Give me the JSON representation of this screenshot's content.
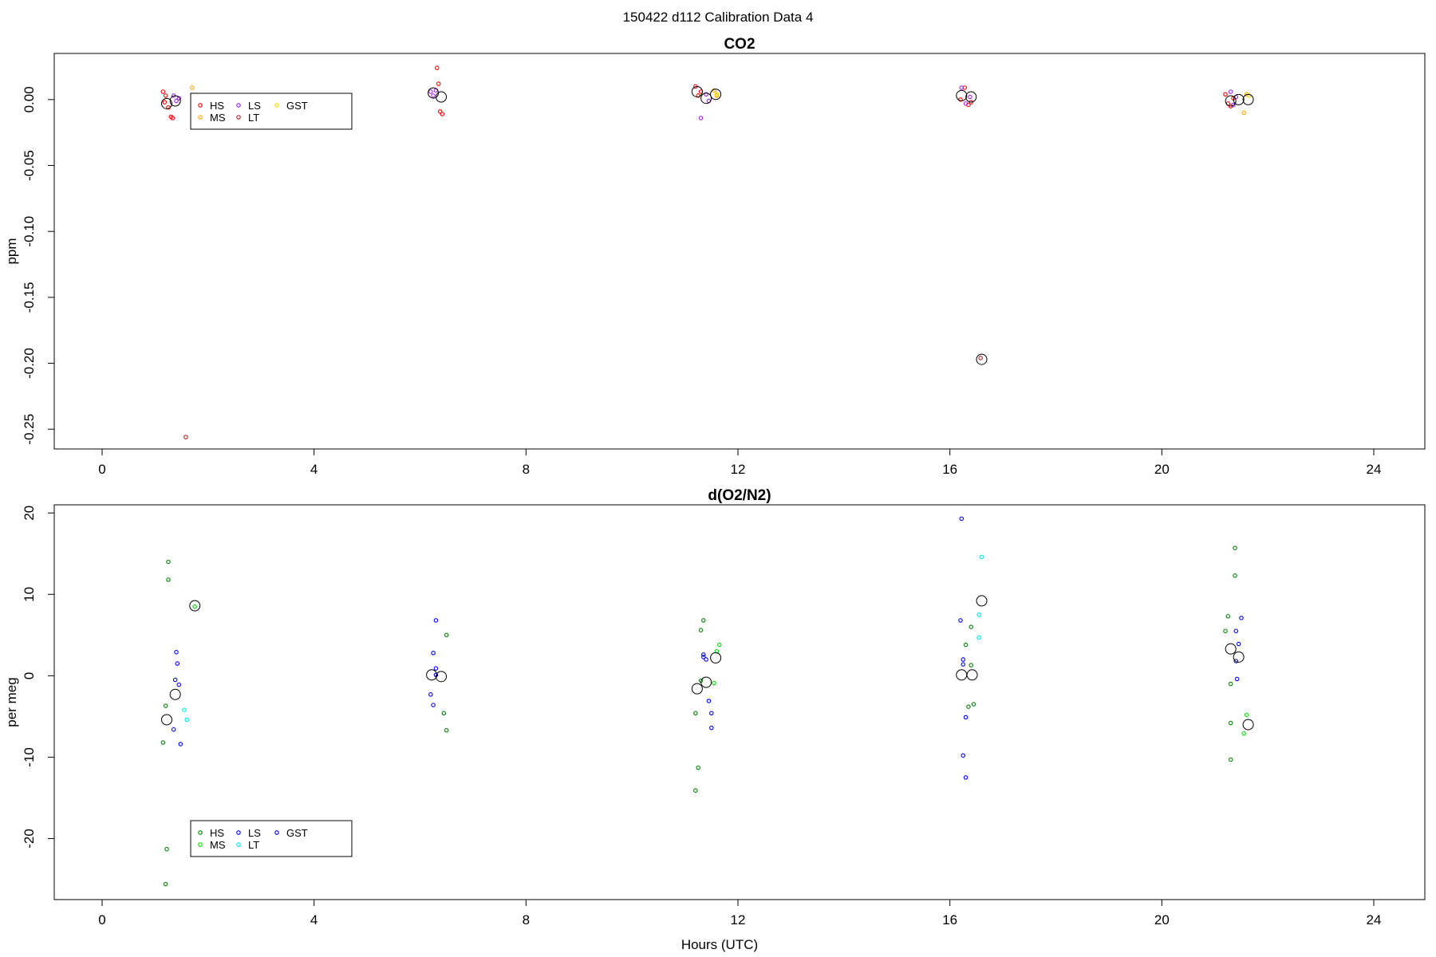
{
  "figure": {
    "title": "150422   d112   Calibration Data 4",
    "xlabel": "Hours (UTC)"
  },
  "chart_data": [
    {
      "type": "scatter",
      "title": "CO2",
      "xlabel": "",
      "ylabel": "ppm",
      "xlim": [
        0,
        24
      ],
      "ylim": [
        -0.265,
        0.035
      ],
      "xticks": [
        0,
        4,
        8,
        12,
        16,
        20,
        24
      ],
      "yticks": [
        0.0,
        -0.05,
        -0.1,
        -0.15,
        -0.2,
        -0.25
      ],
      "ytick_labels": [
        "0.00",
        "-0.05",
        "-0.10",
        "-0.15",
        "-0.20",
        "-0.25"
      ],
      "legend": {
        "position": "top-left",
        "entries": [
          {
            "name": "HS",
            "color": "#ff0000"
          },
          {
            "name": "MS",
            "color": "#ffa500"
          },
          {
            "name": "LS",
            "color": "#a020f0"
          },
          {
            "name": "LT",
            "color": "#b22222"
          },
          {
            "name": "GST",
            "color": "#ffd700"
          }
        ]
      },
      "series": [
        {
          "name": "HS",
          "color": "#ff0000",
          "points": [
            [
              1.15,
              0.006
            ],
            [
              1.2,
              0.003
            ],
            [
              1.25,
              -0.006
            ],
            [
              1.3,
              -0.013
            ],
            [
              1.33,
              -0.014
            ],
            [
              1.18,
              -0.002
            ],
            [
              6.32,
              0.024
            ],
            [
              6.35,
              0.012
            ],
            [
              6.38,
              -0.009
            ],
            [
              6.42,
              -0.011
            ],
            [
              11.2,
              0.01
            ],
            [
              11.25,
              0.003
            ],
            [
              11.3,
              0.006
            ],
            [
              16.2,
              0.0
            ],
            [
              16.28,
              0.009
            ],
            [
              16.35,
              -0.004
            ],
            [
              16.4,
              -0.002
            ],
            [
              21.2,
              0.004
            ],
            [
              21.25,
              -0.003
            ],
            [
              21.3,
              -0.005
            ],
            [
              21.35,
              0.001
            ]
          ]
        },
        {
          "name": "MS",
          "color": "#ffa500",
          "points": [
            [
              1.7,
              0.009
            ],
            [
              1.75,
              -0.001
            ],
            [
              11.55,
              0.007
            ],
            [
              11.6,
              0.003
            ],
            [
              21.55,
              -0.01
            ],
            [
              21.6,
              0.004
            ]
          ]
        },
        {
          "name": "LS",
          "color": "#a020f0",
          "points": [
            [
              1.35,
              0.003
            ],
            [
              1.4,
              -0.001
            ],
            [
              1.45,
              0.001
            ],
            [
              6.2,
              0.006
            ],
            [
              6.25,
              0.003
            ],
            [
              6.3,
              0.007
            ],
            [
              11.3,
              -0.014
            ],
            [
              11.4,
              0.004
            ],
            [
              11.45,
              -0.001
            ],
            [
              16.22,
              0.009
            ],
            [
              16.3,
              -0.003
            ],
            [
              16.38,
              0.002
            ],
            [
              21.3,
              0.006
            ],
            [
              21.35,
              -0.004
            ],
            [
              21.4,
              0.002
            ]
          ]
        },
        {
          "name": "LT",
          "color": "#b22222",
          "points": [
            [
              1.58,
              -0.256
            ],
            [
              16.58,
              -0.196
            ]
          ]
        },
        {
          "name": "GST",
          "color": "#ffd700",
          "points": [
            [
              11.6,
              0.004
            ],
            [
              21.65,
              0.003
            ]
          ]
        }
      ],
      "means": [
        [
          1.22,
          -0.003
        ],
        [
          1.38,
          -0.001
        ],
        [
          6.25,
          0.005
        ],
        [
          6.4,
          0.002
        ],
        [
          11.23,
          0.006
        ],
        [
          11.4,
          0.001
        ],
        [
          11.58,
          0.004
        ],
        [
          16.22,
          0.003
        ],
        [
          16.4,
          0.002
        ],
        [
          16.6,
          -0.197
        ],
        [
          21.3,
          -0.001
        ],
        [
          21.45,
          0.0
        ],
        [
          21.63,
          0.0
        ]
      ]
    },
    {
      "type": "scatter",
      "title": "d(O2/N2)",
      "xlabel": "Hours (UTC)",
      "ylabel": "per meg",
      "xlim": [
        0,
        24
      ],
      "ylim": [
        -27.5,
        21
      ],
      "xticks": [
        0,
        4,
        8,
        12,
        16,
        20,
        24
      ],
      "yticks": [
        20,
        10,
        0,
        -10,
        -20
      ],
      "ytick_labels": [
        "20",
        "10",
        "0",
        "-10",
        "-20"
      ],
      "legend": {
        "position": "bottom-left",
        "entries": [
          {
            "name": "HS",
            "color": "#008000"
          },
          {
            "name": "MS",
            "color": "#00dd00"
          },
          {
            "name": "LS",
            "color": "#0000ff"
          },
          {
            "name": "LT",
            "color": "#00e5ee"
          },
          {
            "name": "GST",
            "color": "#0000b0"
          }
        ]
      },
      "series": [
        {
          "name": "HS",
          "color": "#008000",
          "points": [
            [
              1.15,
              -8.2
            ],
            [
              1.2,
              -3.7
            ],
            [
              1.22,
              -21.3
            ],
            [
              1.2,
              -25.6
            ],
            [
              1.25,
              14
            ],
            [
              1.25,
              11.8
            ],
            [
              6.5,
              5
            ],
            [
              6.45,
              -4.6
            ],
            [
              6.5,
              -6.7
            ],
            [
              11.2,
              -4.6
            ],
            [
              11.25,
              -11.3
            ],
            [
              11.2,
              -14.1
            ],
            [
              11.3,
              5.6
            ],
            [
              11.35,
              6.8
            ],
            [
              11.3,
              -0.6
            ],
            [
              16.3,
              3.8
            ],
            [
              16.35,
              -3.8
            ],
            [
              16.4,
              6
            ],
            [
              16.4,
              1.3
            ],
            [
              16.45,
              -3.5
            ],
            [
              21.25,
              7.3
            ],
            [
              21.2,
              5.5
            ],
            [
              21.3,
              -1
            ],
            [
              21.3,
              -5.8
            ],
            [
              21.3,
              -10.3
            ],
            [
              21.38,
              15.7
            ],
            [
              21.38,
              12.3
            ]
          ]
        },
        {
          "name": "MS",
          "color": "#00dd00",
          "points": [
            [
              1.75,
              8.5
            ],
            [
              11.6,
              3
            ],
            [
              11.65,
              3.8
            ],
            [
              11.55,
              -0.9
            ],
            [
              21.6,
              -4.8
            ],
            [
              21.55,
              -7.1
            ]
          ]
        },
        {
          "name": "LS",
          "color": "#0000ff",
          "points": [
            [
              1.35,
              -6.6
            ],
            [
              1.4,
              2.9
            ],
            [
              1.42,
              1.5
            ],
            [
              1.38,
              -0.5
            ],
            [
              1.45,
              -1.1
            ],
            [
              1.48,
              -8.4
            ],
            [
              6.3,
              6.8
            ],
            [
              6.25,
              2.8
            ],
            [
              6.2,
              -2.3
            ],
            [
              6.25,
              -3.6
            ],
            [
              6.3,
              0.9
            ],
            [
              11.35,
              2.3
            ],
            [
              11.4,
              2
            ],
            [
              11.5,
              -6.4
            ],
            [
              11.45,
              -3.1
            ],
            [
              11.5,
              -4.6
            ],
            [
              16.2,
              6.8
            ],
            [
              16.25,
              2
            ],
            [
              16.25,
              1.4
            ],
            [
              16.3,
              -5.1
            ],
            [
              16.25,
              -9.8
            ],
            [
              16.3,
              -12.5
            ],
            [
              16.22,
              19.3
            ],
            [
              21.4,
              5.5
            ],
            [
              21.45,
              3.9
            ],
            [
              21.5,
              7.1
            ],
            [
              21.42,
              -0.4
            ]
          ]
        },
        {
          "name": "LT",
          "color": "#00e5ee",
          "points": [
            [
              1.55,
              -4.2
            ],
            [
              1.6,
              -5.4
            ],
            [
              16.6,
              14.6
            ],
            [
              16.55,
              7.5
            ],
            [
              16.55,
              4.7
            ]
          ]
        },
        {
          "name": "GST",
          "color": "#0000b0",
          "points": [
            [
              6.3,
              0.1
            ],
            [
              11.35,
              2.6
            ],
            [
              21.4,
              1.8
            ]
          ]
        }
      ],
      "means": [
        [
          1.22,
          -5.4
        ],
        [
          1.38,
          -2.3
        ],
        [
          1.75,
          8.6
        ],
        [
          6.22,
          0.1
        ],
        [
          6.4,
          -0.1
        ],
        [
          11.23,
          -1.6
        ],
        [
          11.4,
          -0.8
        ],
        [
          11.58,
          2.2
        ],
        [
          16.22,
          0.1
        ],
        [
          16.42,
          0.1
        ],
        [
          16.6,
          9.2
        ],
        [
          21.3,
          3.3
        ],
        [
          21.45,
          2.3
        ],
        [
          21.63,
          -6
        ]
      ]
    }
  ]
}
